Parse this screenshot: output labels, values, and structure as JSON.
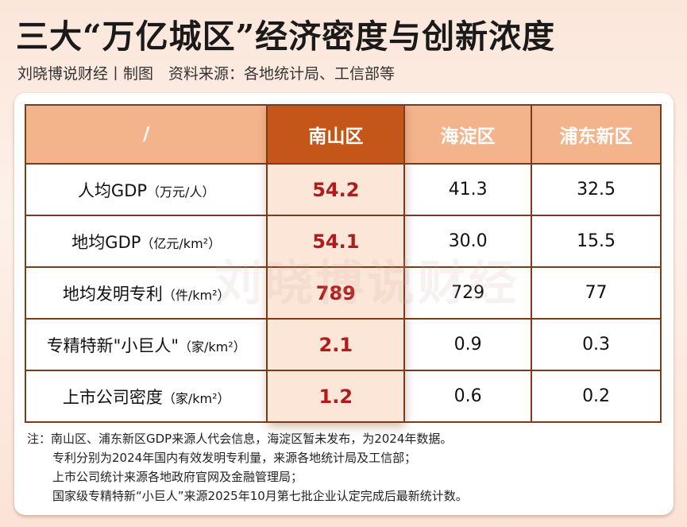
{
  "title": "三大“万亿城区”经济密度与创新浓度",
  "subtitle": "刘晓博说财经丨制图　资料来源：各地统计局、工信部等",
  "watermark": "刘晓博说财经",
  "colors": {
    "header": "#f3b48c",
    "header_highlight": "#c5561a",
    "highlight_value": "#b01c1c",
    "border": "#7a3c1c"
  },
  "chart_data": {
    "type": "table",
    "columns": [
      "/",
      "南山区",
      "海淀区",
      "浦东新区"
    ],
    "highlight_column": "南山区",
    "rows": [
      {
        "label": "人均GDP",
        "unit": "（万元/人）",
        "values": [
          "54.2",
          "41.3",
          "32.5"
        ]
      },
      {
        "label": "地均GDP",
        "unit": "（亿元/km²）",
        "values": [
          "54.1",
          "30.0",
          "15.5"
        ]
      },
      {
        "label": "地均发明专利",
        "unit": "（件/km²）",
        "values": [
          "789",
          "729",
          "77"
        ]
      },
      {
        "label": "专精特新\"小巨人\"",
        "unit": "（家/km²）",
        "values": [
          "2.1",
          "0.9",
          "0.3"
        ]
      },
      {
        "label": "上市公司密度",
        "unit": "（家/km²）",
        "values": [
          "1.2",
          "0.6",
          "0.2"
        ]
      }
    ]
  },
  "notes": [
    "注：南山区、浦东新区GDP来源人代会信息，海淀区暂未发布，为2024年数据。",
    "专利分别为2024年国内有效发明专利量，来源各地统计局及工信部；",
    "上市公司统计来源各地政府官网及金融管理局；",
    "国家级专精特新“小巨人”来源2025年10月第七批企业认定完成后最新统计数。"
  ]
}
